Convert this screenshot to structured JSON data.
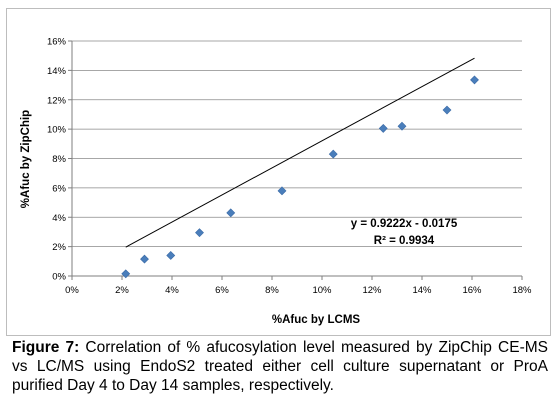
{
  "chart_data": {
    "type": "scatter",
    "title": "",
    "xlabel": "%Afuc by LCMS",
    "ylabel": "%Afuc by ZipChip",
    "xlim": [
      0,
      18
    ],
    "ylim": [
      0,
      16
    ],
    "x_ticks": [
      0,
      2,
      4,
      6,
      8,
      10,
      12,
      14,
      16,
      18
    ],
    "y_ticks": [
      0,
      2,
      4,
      6,
      8,
      10,
      12,
      14,
      16
    ],
    "x_tick_labels": [
      "0%",
      "2%",
      "4%",
      "6%",
      "8%",
      "10%",
      "12%",
      "14%",
      "16%",
      "18%"
    ],
    "y_tick_labels": [
      "0%",
      "2%",
      "4%",
      "6%",
      "8%",
      "10%",
      "12%",
      "14%",
      "16%"
    ],
    "grid": "horizontal",
    "marker_color": "#4a7ebb",
    "trendline_color": "#000000",
    "points": [
      {
        "x": 2.15,
        "y": 0.15
      },
      {
        "x": 2.9,
        "y": 1.15
      },
      {
        "x": 3.95,
        "y": 1.4
      },
      {
        "x": 5.1,
        "y": 2.95
      },
      {
        "x": 6.35,
        "y": 4.3
      },
      {
        "x": 8.4,
        "y": 5.8
      },
      {
        "x": 10.45,
        "y": 8.3
      },
      {
        "x": 12.45,
        "y": 10.05
      },
      {
        "x": 13.2,
        "y": 10.2
      },
      {
        "x": 15.0,
        "y": 11.3
      },
      {
        "x": 16.1,
        "y": 13.35
      }
    ],
    "trendline": {
      "slope": 0.9222,
      "intercept": -0.0175,
      "x_from": 2.15,
      "x_to": 16.1
    },
    "equation_label": "y = 0.9222x - 0.0175",
    "r2_label": "R² = 0.9934"
  },
  "caption": {
    "label": "Figure 7:",
    "text": "Correlation of % afucosylation level measured by ZipChip CE-MS vs LC/MS using EndoS2 treated either cell culture supernatant or ProA purified Day 4 to Day 14 samples, respectively."
  }
}
